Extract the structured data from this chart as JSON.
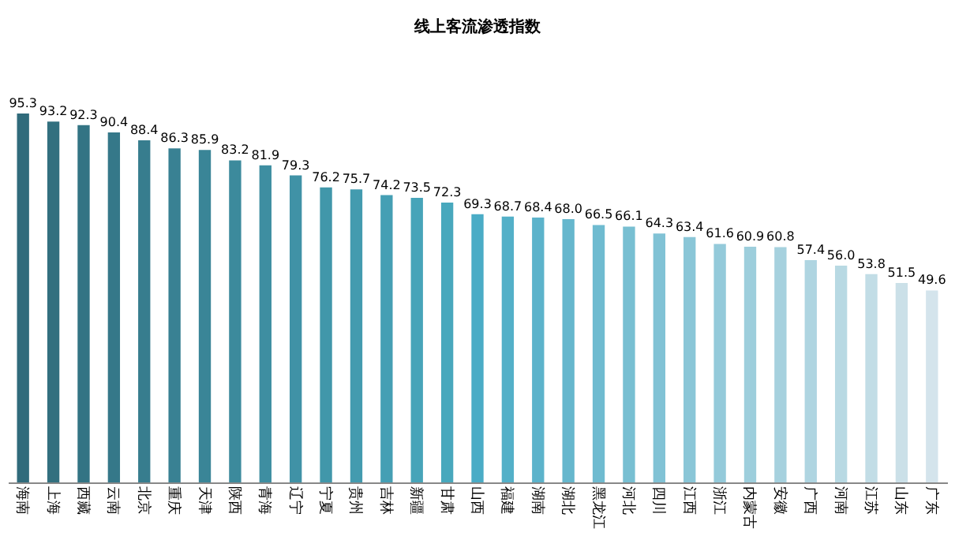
{
  "chart_data": {
    "type": "bar",
    "title": "线上客流渗透指数",
    "categories": [
      "海南",
      "上海",
      "西藏",
      "云南",
      "北京",
      "重庆",
      "天津",
      "陕西",
      "青海",
      "辽宁",
      "宁夏",
      "贵州",
      "吉林",
      "新疆",
      "甘肃",
      "山西",
      "福建",
      "湖南",
      "湖北",
      "黑龙江",
      "河北",
      "四川",
      "江西",
      "浙江",
      "内蒙古",
      "安徽",
      "广西",
      "河南",
      "江苏",
      "山东",
      "广东"
    ],
    "values": [
      95.3,
      93.2,
      92.3,
      90.4,
      88.4,
      86.3,
      85.9,
      83.2,
      81.9,
      79.3,
      76.2,
      75.7,
      74.2,
      73.5,
      72.3,
      69.3,
      68.7,
      68.4,
      68.0,
      66.5,
      66.1,
      64.3,
      63.4,
      61.6,
      60.9,
      60.8,
      57.4,
      56.0,
      53.8,
      51.5,
      49.6
    ],
    "colors": [
      "#306b7b",
      "#32707f",
      "#337484",
      "#357889",
      "#377d8e",
      "#398193",
      "#3a8597",
      "#3c8a9c",
      "#3e8ea1",
      "#4092a6",
      "#4197aa",
      "#439baf",
      "#459fb4",
      "#47a4b9",
      "#48a8bd",
      "#4aacc6",
      "#53b0c8",
      "#5cb3cb",
      "#66b7cd",
      "#6fbbd0",
      "#78bfd2",
      "#81c2d5",
      "#8ac6d7",
      "#94cada",
      "#9dcedc",
      "#a6d1de",
      "#afd5e1",
      "#b8d9e3",
      "#c2dde6",
      "#cbe0e8",
      "#d4e4ec"
    ],
    "value_labels": [
      "95.3",
      "93.2",
      "92.3",
      "90.4",
      "88.4",
      "86.3",
      "85.9",
      "83.2",
      "81.9",
      "79.3",
      "76.2",
      "75.7",
      "74.2",
      "73.5",
      "72.3",
      "69.3",
      "68.7",
      "68.4",
      "68.0",
      "66.5",
      "66.1",
      "64.3",
      "63.4",
      "61.6",
      "60.9",
      "60.8",
      "57.4",
      "56.0",
      "53.8",
      "51.5",
      "49.6"
    ],
    "tick_labels": "x",
    "grid": false
  }
}
